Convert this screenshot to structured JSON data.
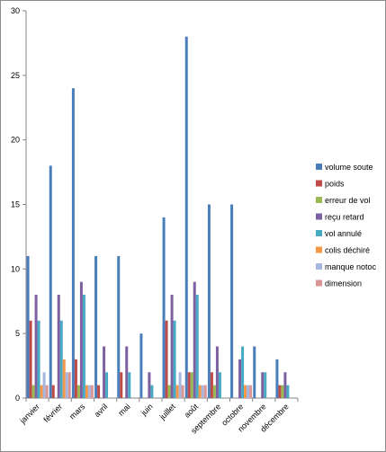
{
  "chart_data": {
    "type": "bar",
    "categories": [
      "janvier",
      "février",
      "mars",
      "avril",
      "mai",
      "juin",
      "juillet",
      "août",
      "septembre",
      "octobre",
      "novembre",
      "décembre"
    ],
    "ylim": [
      0,
      30
    ],
    "yticks": [
      0,
      5,
      10,
      15,
      20,
      25,
      30
    ],
    "grid": false,
    "legend_position": "right",
    "series": [
      {
        "name": "volume soute",
        "color": "#4a7ebb",
        "values": [
          11,
          18,
          24,
          11,
          11,
          5,
          14,
          28,
          15,
          15,
          4,
          3
        ]
      },
      {
        "name": "poids",
        "color": "#be4b48",
        "values": [
          6,
          1,
          3,
          1,
          2,
          0,
          6,
          2,
          2,
          0,
          0,
          1
        ]
      },
      {
        "name": "erreur de vol",
        "color": "#98b954",
        "values": [
          1,
          0,
          1,
          0,
          0,
          0,
          1,
          2,
          1,
          0,
          0,
          1
        ]
      },
      {
        "name": "reçu retard",
        "color": "#7d60a0",
        "values": [
          8,
          8,
          9,
          4,
          4,
          2,
          8,
          9,
          4,
          3,
          2,
          2
        ]
      },
      {
        "name": "vol annulé",
        "color": "#46aac5",
        "values": [
          6,
          6,
          8,
          2,
          2,
          1,
          6,
          8,
          2,
          4,
          2,
          1
        ]
      },
      {
        "name": "colis déchiré",
        "color": "#f79646",
        "values": [
          1,
          3,
          1,
          0,
          0,
          0,
          1,
          1,
          0,
          1,
          0,
          0
        ]
      },
      {
        "name": "manque notoc",
        "color": "#a6b7df",
        "values": [
          2,
          2,
          1,
          0,
          0,
          0,
          2,
          1,
          0,
          1,
          0,
          0
        ]
      },
      {
        "name": "dimension",
        "color": "#d99694",
        "values": [
          1,
          2,
          1,
          0,
          0,
          0,
          1,
          1,
          0,
          1,
          0,
          0
        ]
      }
    ]
  }
}
